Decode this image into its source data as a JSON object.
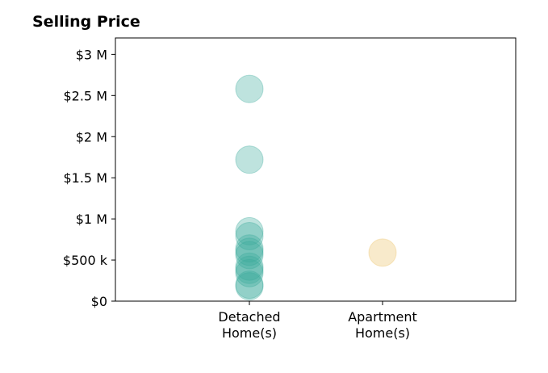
{
  "chart_data": {
    "type": "scatter",
    "title": "Selling Price",
    "xlabel": "",
    "ylabel": "",
    "categories": [
      [
        "Detached",
        "Home(s)"
      ],
      [
        "Apartment",
        "Home(s)"
      ]
    ],
    "y_ticks": [
      {
        "value": 0,
        "label": "$0"
      },
      {
        "value": 500000,
        "label": "$500 k"
      },
      {
        "value": 1000000,
        "label": "$1 M"
      },
      {
        "value": 1500000,
        "label": "$1.5 M"
      },
      {
        "value": 2000000,
        "label": "$2 M"
      },
      {
        "value": 2500000,
        "label": "$2.5 M"
      },
      {
        "value": 3000000,
        "label": "$3 M"
      }
    ],
    "ylim": [
      0,
      3200000
    ],
    "grid": false,
    "legend": "none",
    "series": [
      {
        "category": 0,
        "color": "#3aa99a",
        "values": [
          2580000,
          1720000,
          850000,
          790000,
          640000,
          600000,
          560000,
          420000,
          380000,
          340000,
          200000,
          180000
        ]
      },
      {
        "category": 1,
        "color": "#ebbf60",
        "values": [
          590000
        ]
      }
    ]
  }
}
